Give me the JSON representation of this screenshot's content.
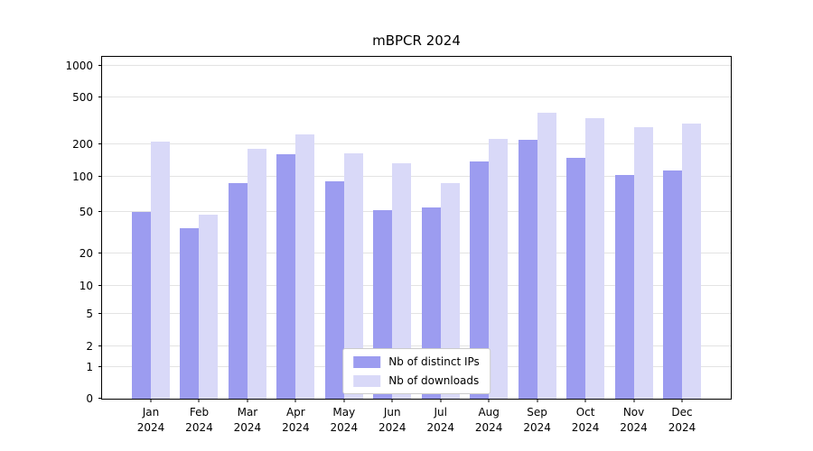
{
  "chart_data": {
    "type": "bar",
    "title": "mBPCR 2024",
    "year": "2024",
    "months": [
      "Jan",
      "Feb",
      "Mar",
      "Apr",
      "May",
      "Jun",
      "Jul",
      "Aug",
      "Sep",
      "Oct",
      "Nov",
      "Dec"
    ],
    "series": [
      {
        "name": "Nb of distinct IPs",
        "color": "#9c9cf0",
        "values": [
          50,
          35,
          88,
          160,
          92,
          52,
          55,
          138,
          215,
          150,
          105,
          115
        ]
      },
      {
        "name": "Nb of downloads",
        "color": "#d9d9f8",
        "values": [
          210,
          47,
          180,
          240,
          165,
          133,
          88,
          220,
          370,
          330,
          280,
          300
        ]
      }
    ],
    "yticks": [
      0,
      1,
      2,
      5,
      10,
      20,
      50,
      100,
      200,
      500,
      1000
    ],
    "ylim": [
      0,
      1000
    ],
    "scale": "symlog",
    "grid": "horizontal",
    "legend_position": "bottom-center"
  }
}
